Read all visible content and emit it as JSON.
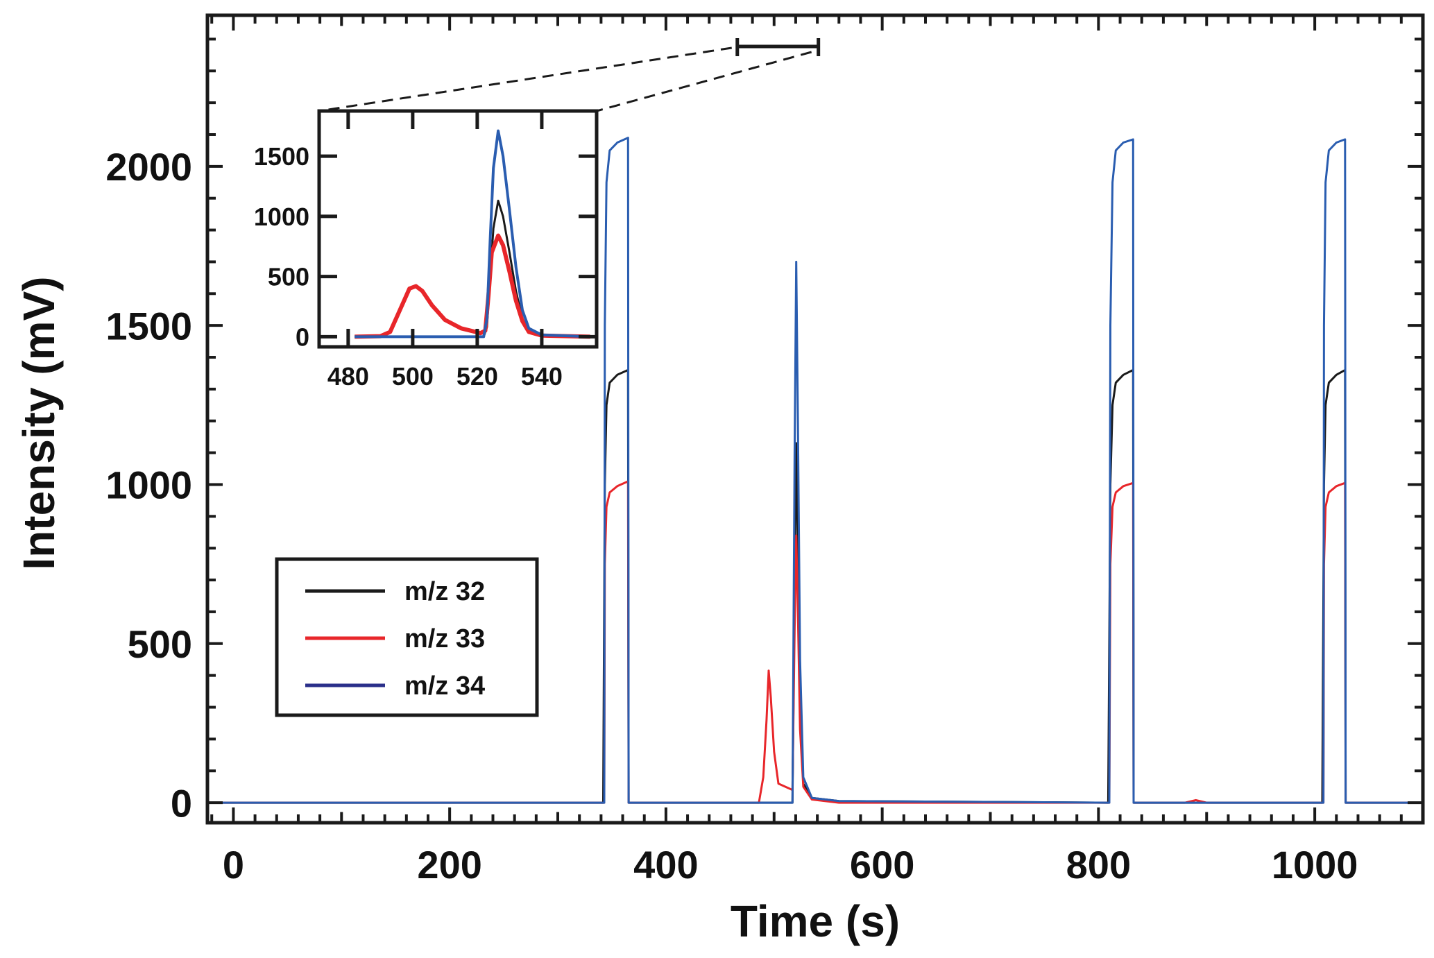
{
  "chart_data": [
    {
      "type": "line",
      "xlabel": "Time (s)",
      "ylabel": "Intensity (mV)",
      "xlim": [
        -24,
        1100
      ],
      "ylim": [
        -63,
        2475
      ],
      "xticks": [
        0,
        200,
        400,
        600,
        800,
        1000
      ],
      "yticks": [
        0,
        500,
        1000,
        1500,
        2000
      ],
      "grid": false,
      "legend_position": "lower-left",
      "zoom_bracket_x": [
        466,
        541
      ],
      "series": [
        {
          "name": "m/z 32",
          "color": "#1a1a1a",
          "points": [
            [
              -24,
              0
            ],
            [
              342,
              0
            ],
            [
              343.5,
              1000
            ],
            [
              345,
              1250
            ],
            [
              348,
              1320
            ],
            [
              355,
              1345
            ],
            [
              365,
              1360
            ],
            [
              365.5,
              0
            ],
            [
              517,
              0
            ],
            [
              519,
              700
            ],
            [
              520.5,
              1130
            ],
            [
              522,
              800
            ],
            [
              524,
              300
            ],
            [
              527,
              60
            ],
            [
              535,
              15
            ],
            [
              560,
              5
            ],
            [
              809,
              0
            ],
            [
              811,
              1000
            ],
            [
              813,
              1250
            ],
            [
              816,
              1320
            ],
            [
              823,
              1345
            ],
            [
              832,
              1360
            ],
            [
              832.5,
              0
            ],
            [
              1007,
              0
            ],
            [
              1008.5,
              1000
            ],
            [
              1010,
              1250
            ],
            [
              1013,
              1320
            ],
            [
              1020,
              1345
            ],
            [
              1028,
              1360
            ],
            [
              1028.5,
              0
            ],
            [
              1100,
              0
            ]
          ]
        },
        {
          "name": "m/z 33",
          "color": "#e8262a",
          "points": [
            [
              -24,
              0
            ],
            [
              343,
              0
            ],
            [
              343.5,
              750
            ],
            [
              345,
              930
            ],
            [
              348,
              975
            ],
            [
              355,
              995
            ],
            [
              365,
              1010
            ],
            [
              365.5,
              0
            ],
            [
              486,
              0
            ],
            [
              490,
              80
            ],
            [
              493,
              260
            ],
            [
              495,
              415
            ],
            [
              497,
              330
            ],
            [
              500,
              160
            ],
            [
              504,
              60
            ],
            [
              517,
              40
            ],
            [
              519,
              550
            ],
            [
              520.5,
              840
            ],
            [
              522,
              600
            ],
            [
              524,
              230
            ],
            [
              527,
              50
            ],
            [
              535,
              10
            ],
            [
              560,
              0
            ],
            [
              810,
              0
            ],
            [
              811,
              750
            ],
            [
              813,
              930
            ],
            [
              816,
              975
            ],
            [
              823,
              995
            ],
            [
              832,
              1005
            ],
            [
              832.5,
              0
            ],
            [
              880,
              0
            ],
            [
              890,
              8
            ],
            [
              900,
              0
            ],
            [
              1008,
              0
            ],
            [
              1008.5,
              750
            ],
            [
              1010,
              930
            ],
            [
              1013,
              975
            ],
            [
              1020,
              995
            ],
            [
              1028,
              1005
            ],
            [
              1028.5,
              0
            ],
            [
              1100,
              0
            ]
          ]
        },
        {
          "name": "m/z 34",
          "color": "#2a5db0",
          "points": [
            [
              -24,
              0
            ],
            [
              343,
              0
            ],
            [
              343.5,
              1500
            ],
            [
              345,
              1950
            ],
            [
              348,
              2050
            ],
            [
              355,
              2075
            ],
            [
              365,
              2090
            ],
            [
              365.5,
              0
            ],
            [
              517,
              0
            ],
            [
              519,
              1100
            ],
            [
              520.5,
              1700
            ],
            [
              522,
              1200
            ],
            [
              524,
              450
            ],
            [
              527,
              80
            ],
            [
              535,
              15
            ],
            [
              560,
              5
            ],
            [
              810,
              0
            ],
            [
              811,
              1500
            ],
            [
              813,
              1950
            ],
            [
              816,
              2050
            ],
            [
              823,
              2075
            ],
            [
              832,
              2085
            ],
            [
              832.5,
              0
            ],
            [
              1008,
              0
            ],
            [
              1008.5,
              1500
            ],
            [
              1010,
              1950
            ],
            [
              1013,
              2050
            ],
            [
              1020,
              2075
            ],
            [
              1028,
              2085
            ],
            [
              1028.5,
              0
            ],
            [
              1100,
              0
            ]
          ]
        }
      ]
    },
    {
      "type": "line",
      "xlim": [
        471,
        557
      ],
      "ylim": [
        -84,
        1875
      ],
      "xticks": [
        480,
        500,
        520,
        540
      ],
      "yticks": [
        0,
        500,
        1000,
        1500
      ],
      "grid": false,
      "series": [
        {
          "color": "#1a1a1a",
          "width": 3,
          "points": [
            [
              482,
              0
            ],
            [
              522,
              0
            ],
            [
              523,
              80
            ],
            [
              524,
              500
            ],
            [
              525,
              900
            ],
            [
              526.5,
              1130
            ],
            [
              528,
              1000
            ],
            [
              530,
              700
            ],
            [
              532,
              380
            ],
            [
              534,
              150
            ],
            [
              536,
              50
            ],
            [
              540,
              10
            ],
            [
              555,
              0
            ]
          ]
        },
        {
          "color": "#e8262a",
          "width": 6,
          "points": [
            [
              482,
              0
            ],
            [
              490,
              5
            ],
            [
              493,
              40
            ],
            [
              496,
              220
            ],
            [
              499,
              400
            ],
            [
              501,
              420
            ],
            [
              503,
              380
            ],
            [
              506,
              260
            ],
            [
              510,
              140
            ],
            [
              515,
              70
            ],
            [
              521,
              30
            ],
            [
              522.5,
              50
            ],
            [
              523.5,
              350
            ],
            [
              524.5,
              700
            ],
            [
              526.5,
              840
            ],
            [
              528,
              760
            ],
            [
              530,
              540
            ],
            [
              532,
              300
            ],
            [
              534,
              130
            ],
            [
              536,
              40
            ],
            [
              540,
              10
            ],
            [
              555,
              0
            ]
          ]
        },
        {
          "color": "#2a5db0",
          "width": 4,
          "points": [
            [
              482,
              0
            ],
            [
              522,
              0
            ],
            [
              523,
              150
            ],
            [
              524,
              800
            ],
            [
              525,
              1400
            ],
            [
              526.5,
              1710
            ],
            [
              528,
              1500
            ],
            [
              530,
              1050
            ],
            [
              532,
              580
            ],
            [
              534,
              220
            ],
            [
              536,
              70
            ],
            [
              540,
              15
            ],
            [
              555,
              0
            ]
          ]
        }
      ]
    }
  ]
}
